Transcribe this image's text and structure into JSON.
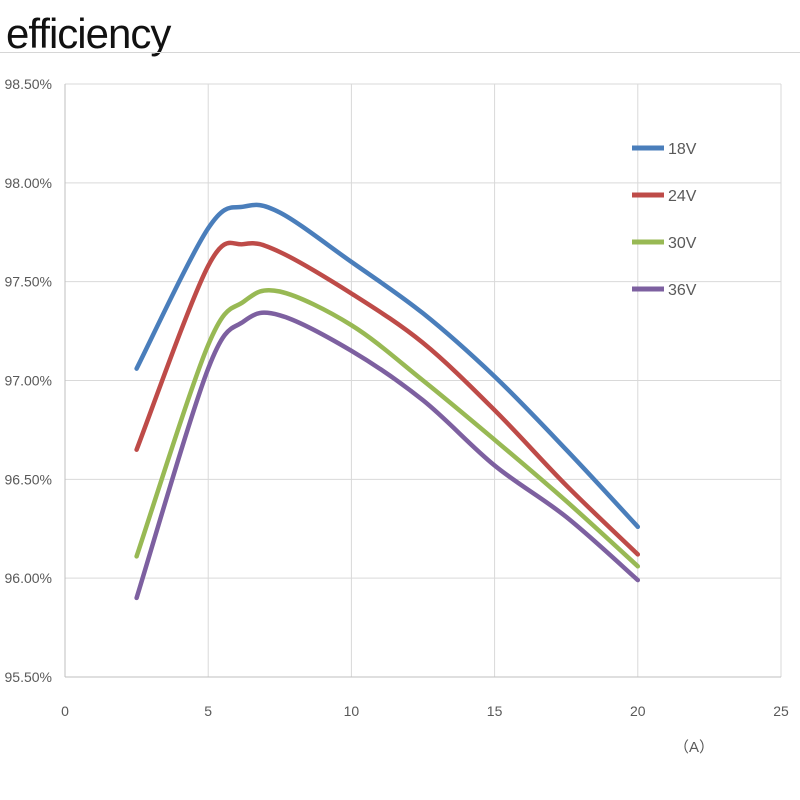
{
  "chart_data": {
    "type": "line",
    "title": "efficiency",
    "xlabel": "（A）",
    "ylabel": "",
    "xlim": [
      0,
      25
    ],
    "ylim": [
      95.5,
      98.5
    ],
    "xticks": [
      0,
      5,
      10,
      15,
      20,
      25
    ],
    "xtick_labels": [
      "0",
      "5",
      "10",
      "15",
      "20",
      "25"
    ],
    "yticks": [
      95.5,
      96.0,
      96.5,
      97.0,
      97.5,
      98.0,
      98.5
    ],
    "ytick_labels": [
      "95.50%",
      "96.00%",
      "96.50%",
      "97.00%",
      "97.50%",
      "98.00%",
      "98.50%"
    ],
    "grid": true,
    "legend_position": "right",
    "series": [
      {
        "name": "18V",
        "color": "#4a7ebb",
        "x": [
          2.5,
          5,
          6.25,
          7.5,
          10,
          12.5,
          15,
          17.5,
          20
        ],
        "y": [
          97.06,
          97.77,
          97.88,
          97.85,
          97.6,
          97.34,
          97.02,
          96.65,
          96.26
        ]
      },
      {
        "name": "24V",
        "color": "#be4b48",
        "x": [
          2.5,
          5,
          6.25,
          7.5,
          10,
          12.5,
          15,
          17.5,
          20
        ],
        "y": [
          96.65,
          97.58,
          97.69,
          97.65,
          97.44,
          97.19,
          96.85,
          96.47,
          96.12
        ]
      },
      {
        "name": "30V",
        "color": "#98b954",
        "x": [
          2.5,
          5,
          6.25,
          7.5,
          10,
          12.5,
          15,
          17.5,
          20
        ],
        "y": [
          96.11,
          97.18,
          97.4,
          97.45,
          97.28,
          97.0,
          96.7,
          96.39,
          96.06
        ]
      },
      {
        "name": "36V",
        "color": "#7d60a0",
        "x": [
          2.5,
          5,
          6.25,
          7.5,
          10,
          12.5,
          15,
          17.5,
          20
        ],
        "y": [
          95.9,
          97.06,
          97.3,
          97.33,
          97.15,
          96.9,
          96.57,
          96.31,
          95.99
        ]
      }
    ]
  }
}
